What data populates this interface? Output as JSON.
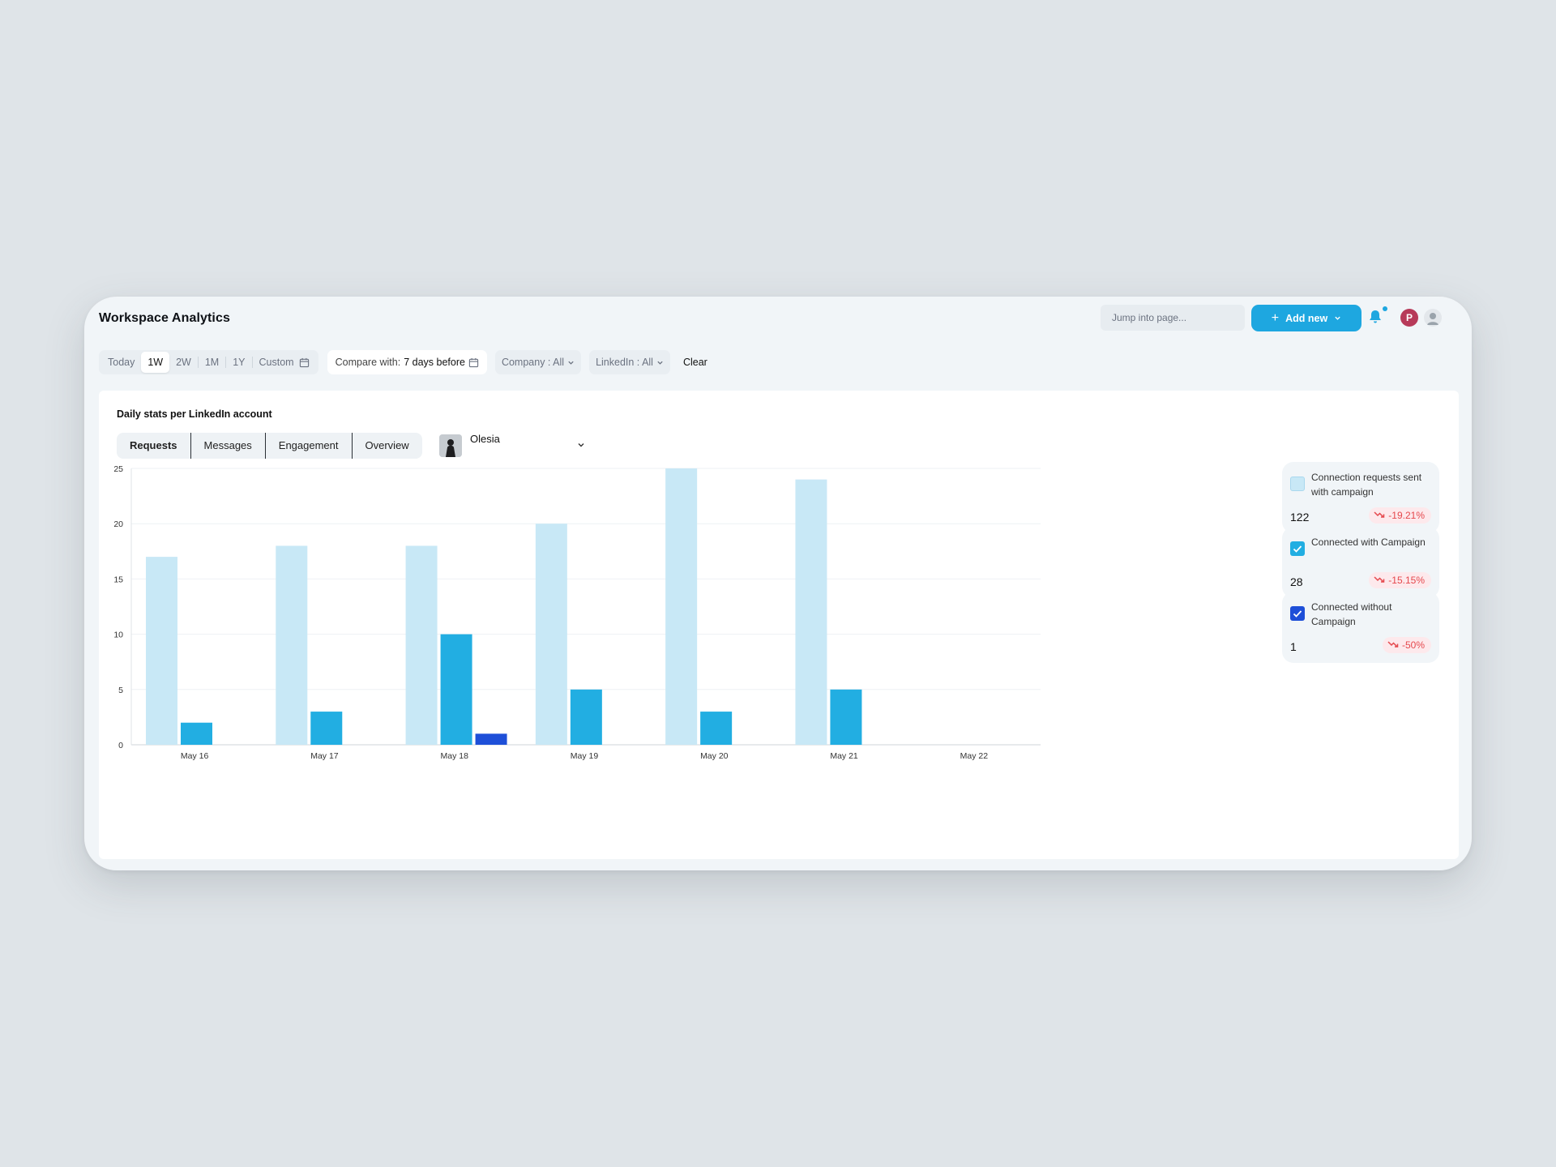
{
  "app": {
    "title": "Workspace Analytics",
    "search_placeholder": "Jump into page...",
    "add_new_label": "Add new",
    "avatar_initial": "P"
  },
  "filters": {
    "ranges": [
      "Today",
      "1W",
      "2W",
      "1M",
      "1Y",
      "Custom"
    ],
    "active_range": "1W",
    "compare_prefix": "Compare with:",
    "compare_value": "7 days before",
    "company": "Company : All",
    "linkedin": "LinkedIn : All",
    "clear_label": "Clear"
  },
  "card": {
    "title": "Daily stats per LinkedIn account",
    "tabs": [
      "Requests",
      "Messages",
      "Engagement",
      "Overview"
    ],
    "active_tab": "Requests",
    "account_name": "Olesia"
  },
  "legend": [
    {
      "label": "Connection requests sent with campaign",
      "value": "122",
      "delta": "-19.21%",
      "color": "#c8e8f6",
      "checked": false
    },
    {
      "label": "Connected with Campaign",
      "value": "28",
      "delta": "-15.15%",
      "color": "#22aee2",
      "checked": true
    },
    {
      "label": "Connected without Campaign",
      "value": "1",
      "delta": "-50%",
      "color": "#1e4fd8",
      "checked": true
    }
  ],
  "chart_data": {
    "type": "bar",
    "categories": [
      "May 16",
      "May 17",
      "May 18",
      "May 19",
      "May 20",
      "May 21",
      "May 22"
    ],
    "series": [
      {
        "name": "Connection requests sent with campaign",
        "values": [
          17,
          18,
          18,
          20,
          25,
          24,
          0
        ],
        "color": "#c8e8f6"
      },
      {
        "name": "Connected with Campaign",
        "values": [
          2,
          3,
          10,
          5,
          3,
          5,
          0
        ],
        "color": "#22aee2"
      },
      {
        "name": "Connected without Campaign",
        "values": [
          0,
          0,
          1,
          0,
          0,
          0,
          0
        ],
        "color": "#1e4fd8"
      }
    ],
    "yticks": [
      0,
      5,
      10,
      15,
      20,
      25
    ],
    "ylim": [
      0,
      25
    ],
    "grid": true,
    "legend_position": "right"
  }
}
